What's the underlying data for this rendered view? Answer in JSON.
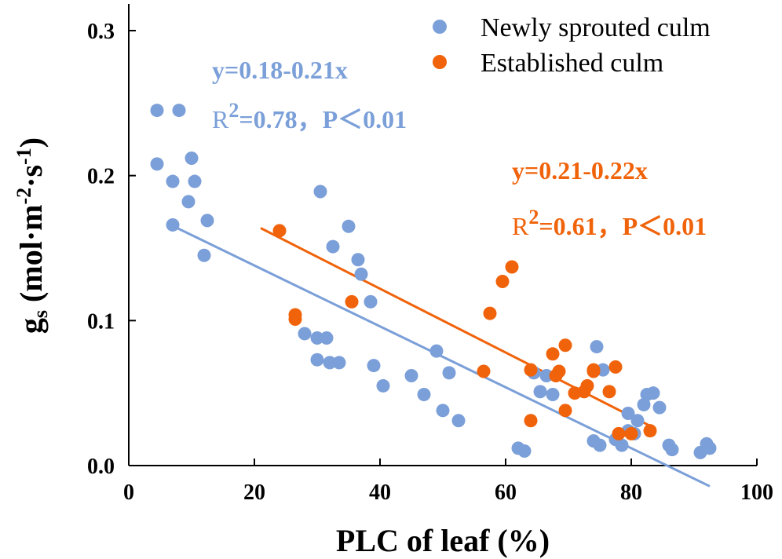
{
  "chart_data": {
    "type": "scatter",
    "xlabel": "PLC of leaf (%)",
    "ylabel": {
      "main": "g",
      "sub": "s",
      "unit_open": " (mol·m",
      "exp1": "-2",
      "mid": "·s",
      "exp2": "-1",
      "unit_close": ")"
    },
    "xlim": [
      0,
      100
    ],
    "ylim": [
      0,
      0.32
    ],
    "xticks": [
      0,
      20,
      40,
      60,
      80,
      100
    ],
    "yticks": [
      0.0,
      0.1,
      0.2,
      0.3
    ],
    "ytick_labels": [
      "0.0",
      "0.1",
      "0.2",
      "0.3"
    ],
    "grid": false,
    "legend_position": "top-right",
    "series": [
      {
        "name": "Newly sprouted culm",
        "color": "#7b9fd8",
        "fit": {
          "intercept": 0.18,
          "slope": -0.21,
          "x_range": [
            7,
            92.5
          ]
        },
        "equation": "y=0.18-0.21x",
        "r2_prefix": "R",
        "r2_exp": "2",
        "r2_value": "=0.78，P＜0.01",
        "x": [
          4.5,
          8,
          4.5,
          7,
          10,
          10.5,
          9.5,
          7,
          12.5,
          12,
          30.5,
          35,
          32.5,
          36.5,
          37,
          38.5,
          28,
          30,
          31.5,
          30,
          32,
          33.5,
          39,
          40.5,
          45,
          47,
          49,
          51,
          52.5,
          50,
          62,
          63,
          64.5,
          65.5,
          67.5,
          66.5,
          74.5,
          75.5,
          74,
          75,
          77.5,
          78.5,
          79.5,
          81,
          82.5,
          83.5,
          84.5,
          82,
          79.5,
          80.5,
          86,
          86.5,
          91,
          92,
          92.5
        ],
        "y": [
          0.245,
          0.245,
          0.208,
          0.196,
          0.212,
          0.196,
          0.182,
          0.166,
          0.169,
          0.145,
          0.189,
          0.165,
          0.151,
          0.142,
          0.132,
          0.113,
          0.091,
          0.088,
          0.088,
          0.073,
          0.071,
          0.071,
          0.069,
          0.055,
          0.062,
          0.049,
          0.079,
          0.064,
          0.031,
          0.038,
          0.012,
          0.01,
          0.064,
          0.051,
          0.049,
          0.062,
          0.082,
          0.066,
          0.017,
          0.014,
          0.018,
          0.014,
          0.036,
          0.031,
          0.049,
          0.05,
          0.04,
          0.042,
          0.024,
          0.022,
          0.014,
          0.011,
          0.009,
          0.015,
          0.012
        ]
      },
      {
        "name": "Established culm",
        "color": "#f0630a",
        "fit": {
          "intercept": 0.21,
          "slope": -0.22,
          "x_range": [
            21,
            83
          ]
        },
        "equation": "y=0.21-0.22x",
        "r2_prefix": "R",
        "r2_exp": "2",
        "r2_value": "=0.61，P＜0.01",
        "x": [
          24,
          26.5,
          26.5,
          35.5,
          56.5,
          57.5,
          59.5,
          61,
          64,
          64,
          67.5,
          68.5,
          68,
          69.5,
          69.5,
          71,
          72.5,
          73,
          74,
          74,
          76.5,
          77.5,
          78,
          80,
          83
        ],
        "y": [
          0.162,
          0.104,
          0.101,
          0.113,
          0.065,
          0.105,
          0.127,
          0.137,
          0.066,
          0.031,
          0.077,
          0.065,
          0.062,
          0.083,
          0.038,
          0.05,
          0.051,
          0.055,
          0.065,
          0.066,
          0.051,
          0.068,
          0.022,
          0.022,
          0.024
        ]
      }
    ]
  }
}
